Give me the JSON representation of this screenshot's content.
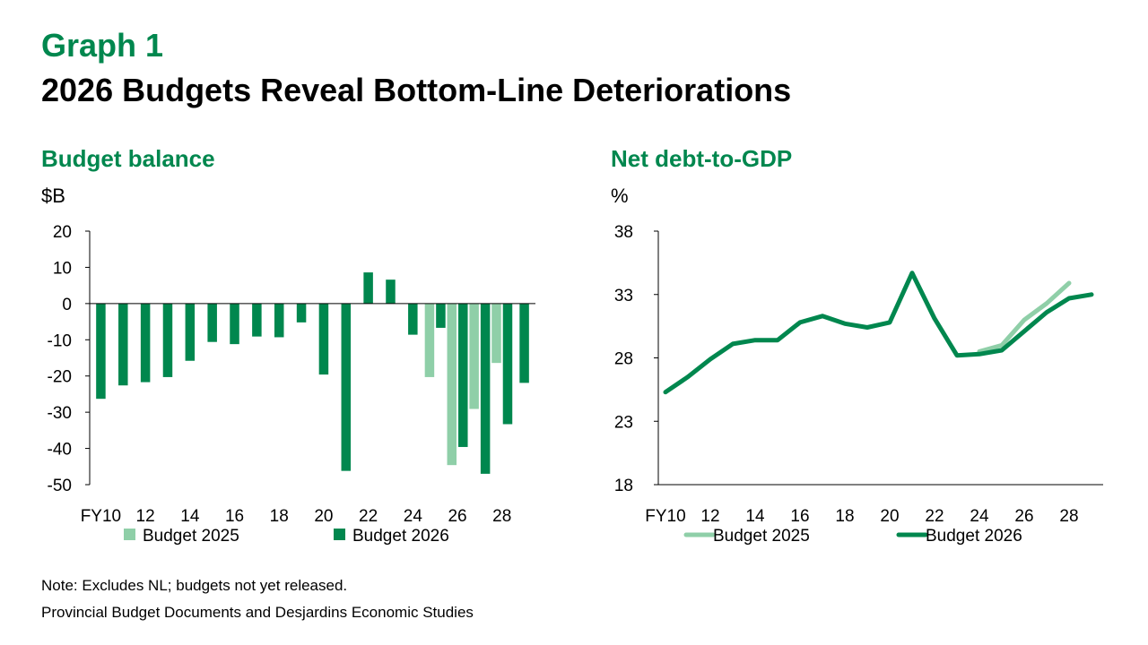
{
  "header": {
    "graph_label": "Graph 1",
    "title": "2026 Budgets Reveal Bottom-Line Deteriorations"
  },
  "colors": {
    "brand": "#00874e",
    "budget_2025": "#8fcfa8",
    "budget_2026": "#00874e",
    "axis": "#000000"
  },
  "footer": {
    "note": "Note: Excludes NL; budgets not yet released.",
    "source": "Provincial Budget Documents and Desjardins Economic Studies"
  },
  "chart_data": [
    {
      "type": "bar",
      "title": "Budget balance",
      "ylabel": "$B",
      "xlabel": "",
      "ylim": [
        -50,
        20
      ],
      "yticks": [
        20,
        10,
        0,
        -10,
        -20,
        -30,
        -40,
        -50
      ],
      "categories": [
        "FY10",
        "11",
        "12",
        "13",
        "14",
        "15",
        "16",
        "17",
        "18",
        "19",
        "20",
        "21",
        "22",
        "23",
        "24",
        "25",
        "26",
        "27",
        "28",
        "29"
      ],
      "tick_labels": [
        "FY10",
        "",
        "12",
        "",
        "14",
        "",
        "16",
        "",
        "18",
        "",
        "20",
        "",
        "22",
        "",
        "24",
        "",
        "26",
        "",
        "28",
        ""
      ],
      "legend_position": "bottom",
      "series": [
        {
          "name": "Budget 2025",
          "values": [
            null,
            null,
            null,
            null,
            null,
            null,
            null,
            null,
            null,
            null,
            null,
            null,
            null,
            null,
            null,
            -20.3,
            -44.6,
            -29.1,
            -16.4,
            null
          ]
        },
        {
          "name": "Budget 2026",
          "values": [
            -26.3,
            -22.6,
            -21.7,
            -20.3,
            -15.8,
            -10.6,
            -11.2,
            -9.1,
            -9.3,
            -5.2,
            -19.6,
            -46.2,
            8.6,
            6.6,
            -8.6,
            -6.7,
            -39.6,
            -47.0,
            -33.3,
            -21.9
          ]
        }
      ]
    },
    {
      "type": "line",
      "title": "Net debt-to-GDP",
      "ylabel": "%",
      "xlabel": "",
      "ylim": [
        18,
        38
      ],
      "yticks": [
        38,
        33,
        28,
        23,
        18
      ],
      "x": [
        "FY10",
        "11",
        "12",
        "13",
        "14",
        "15",
        "16",
        "17",
        "18",
        "19",
        "20",
        "21",
        "22",
        "23",
        "24",
        "25",
        "26",
        "27",
        "28",
        "29"
      ],
      "tick_labels": [
        "FY10",
        "",
        "12",
        "",
        "14",
        "",
        "16",
        "",
        "18",
        "",
        "20",
        "",
        "22",
        "",
        "24",
        "",
        "26",
        "",
        "28",
        ""
      ],
      "legend_position": "bottom",
      "series": [
        {
          "name": "Budget 2025",
          "values": [
            null,
            null,
            null,
            null,
            null,
            null,
            null,
            null,
            null,
            null,
            null,
            null,
            null,
            null,
            28.5,
            29.0,
            31.0,
            32.3,
            33.9,
            null
          ]
        },
        {
          "name": "Budget 2026",
          "values": [
            25.3,
            26.5,
            27.9,
            29.1,
            29.4,
            29.4,
            30.8,
            31.3,
            30.7,
            30.4,
            30.8,
            34.7,
            31.1,
            28.2,
            28.3,
            28.6,
            30.1,
            31.6,
            32.7,
            33.0
          ]
        }
      ]
    }
  ]
}
